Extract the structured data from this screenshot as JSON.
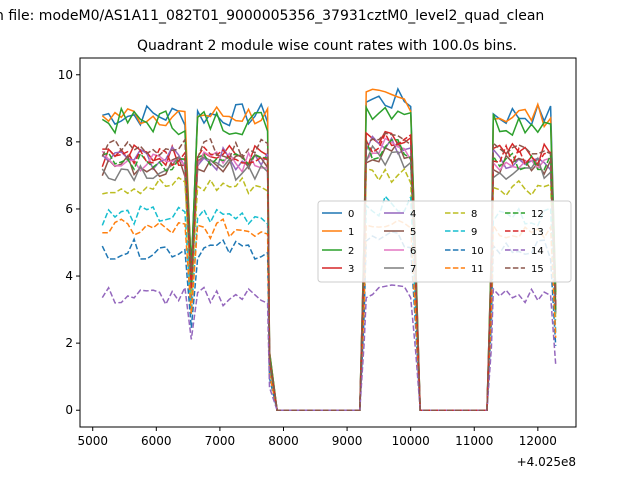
{
  "chart_data": {
    "type": "line",
    "suptitle": "n file: modeM0/AS1A11_082T01_9000005356_37931cztM0_level2_quad_clean",
    "title": "Quadrant 2 module wise count rates with 100.0s bins.",
    "xlabel": "",
    "ylabel": "",
    "x_offset_label": "+4.025e8",
    "xlim": [
      4800,
      12600
    ],
    "ylim": [
      -0.5,
      10.5
    ],
    "xticks": [
      5000,
      6000,
      7000,
      8000,
      9000,
      10000,
      11000,
      12000
    ],
    "yticks": [
      0,
      2,
      4,
      6,
      8,
      10
    ],
    "grid": false,
    "legend_position": "center-right",
    "legend_columns": 4,
    "segments": [
      [
        5150,
        7750
      ],
      [
        9300,
        10050
      ],
      [
        11300,
        12250
      ]
    ],
    "seg1_end": 7780,
    "seg2_start": 9270,
    "seg2_end": 10080,
    "seg3_start": 11270,
    "seg3_end": 12280,
    "zero_x_start": 7900,
    "zero_x_end": 11200,
    "zero_step": 100,
    "series": [
      {
        "name": "0",
        "color": "#1f77b4",
        "dash": "solid",
        "level": 8.8,
        "jitter": 0.35
      },
      {
        "name": "1",
        "color": "#ff7f0e",
        "dash": "solid",
        "level": 8.8,
        "jitter": 0.35
      },
      {
        "name": "2",
        "color": "#2ca02c",
        "dash": "solid",
        "level": 8.6,
        "jitter": 0.4
      },
      {
        "name": "3",
        "color": "#d62728",
        "dash": "solid",
        "level": 7.6,
        "jitter": 0.35
      },
      {
        "name": "4",
        "color": "#9467bd",
        "dash": "solid",
        "level": 7.5,
        "jitter": 0.35
      },
      {
        "name": "5",
        "color": "#8c564b",
        "dash": "solid",
        "level": 7.3,
        "jitter": 0.35
      },
      {
        "name": "6",
        "color": "#e377c2",
        "dash": "solid",
        "level": 7.4,
        "jitter": 0.35
      },
      {
        "name": "7",
        "color": "#7f7f7f",
        "dash": "solid",
        "level": 7.2,
        "jitter": 0.35
      },
      {
        "name": "8",
        "color": "#bcbd22",
        "dash": "dashed",
        "level": 6.7,
        "jitter": 0.3
      },
      {
        "name": "9",
        "color": "#17becf",
        "dash": "dashed",
        "level": 5.8,
        "jitter": 0.3
      },
      {
        "name": "10",
        "color": "#1f77b4",
        "dash": "dashed",
        "level": 4.8,
        "jitter": 0.3
      },
      {
        "name": "11",
        "color": "#ff7f0e",
        "dash": "dashed",
        "level": 5.4,
        "jitter": 0.3
      },
      {
        "name": "12",
        "color": "#2ca02c",
        "dash": "dashed",
        "level": 7.4,
        "jitter": 0.3
      },
      {
        "name": "13",
        "color": "#d62728",
        "dash": "dashed",
        "level": 7.6,
        "jitter": 0.3
      },
      {
        "name": "14",
        "color": "#9467bd",
        "dash": "dashed",
        "level": 3.4,
        "jitter": 0.3
      },
      {
        "name": "15",
        "color": "#8c564b",
        "dash": "dashed",
        "level": 7.8,
        "jitter": 0.3
      }
    ]
  }
}
